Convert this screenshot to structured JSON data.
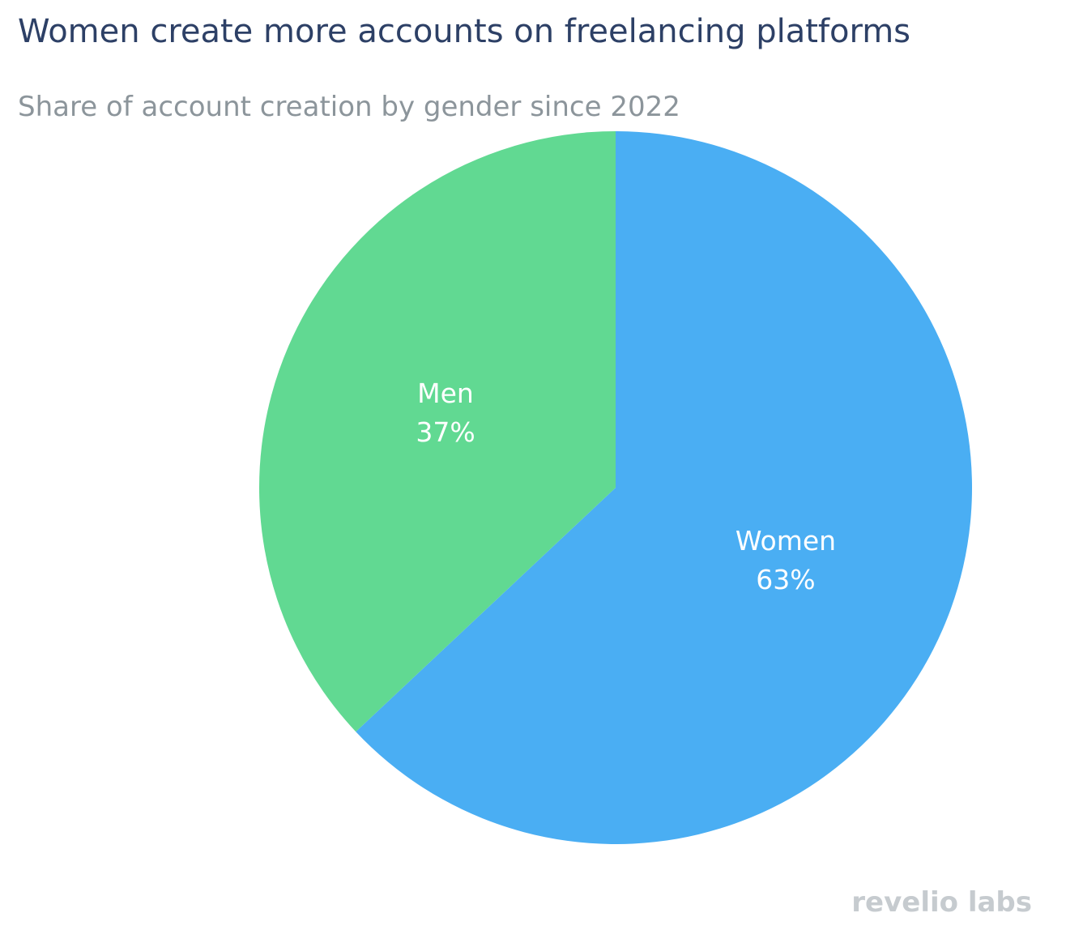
{
  "title": "Women create more accounts on freelancing platforms",
  "subtitle": "Share of account creation by gender since 2022",
  "brand": "revelio labs",
  "colors": {
    "Women": "#4aaef3",
    "Men": "#61d992",
    "title": "#2d4066",
    "subtitle": "#8c959b",
    "brand": "#c6cbcf"
  },
  "chart_data": {
    "type": "pie",
    "title": "Women create more accounts on freelancing platforms",
    "subtitle": "Share of account creation by gender since 2022",
    "slices": [
      {
        "label": "Women",
        "value": 63,
        "value_label": "63%",
        "color": "#4aaef3"
      },
      {
        "label": "Men",
        "value": 37,
        "value_label": "37%",
        "color": "#61d992"
      }
    ],
    "start_angle": "12 o'clock",
    "direction": "clockwise",
    "legend": "none"
  }
}
